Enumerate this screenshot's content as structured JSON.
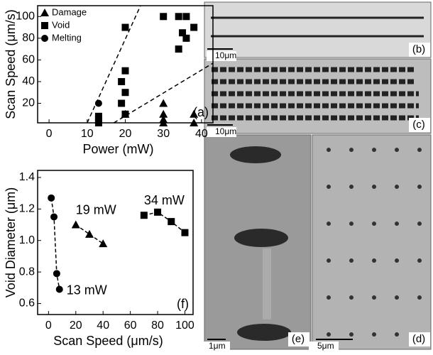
{
  "chart_data": [
    {
      "type": "scatter",
      "x_label": "Power (mW)",
      "y_label": "Scan Speed (μm/s)",
      "panel_label": "(a)",
      "xlim": [
        -3,
        43
      ],
      "ylim": [
        2,
        110
      ],
      "xticks": [
        0,
        10,
        20,
        30,
        40
      ],
      "yticks": [
        20,
        40,
        60,
        80,
        100
      ],
      "legend": "upper left",
      "series": [
        {
          "name": "Damage",
          "marker": "triangle",
          "color": "#000000",
          "x": [
            20,
            30,
            30,
            30,
            30,
            38,
            38
          ],
          "values": [
            10,
            20,
            10,
            5,
            2,
            10,
            2
          ]
        },
        {
          "name": "Void",
          "marker": "square",
          "color": "#000000",
          "x": [
            13,
            13,
            13,
            19,
            20,
            20,
            20,
            19,
            20,
            30,
            34,
            36,
            35,
            36,
            34,
            38
          ],
          "values": [
            8,
            5,
            2,
            40,
            50,
            30,
            90,
            20,
            10,
            100,
            100,
            100,
            85,
            80,
            70,
            90
          ]
        },
        {
          "name": "Melting",
          "marker": "circle",
          "color": "#000000",
          "x": [
            13
          ],
          "values": [
            20
          ]
        }
      ],
      "lines": [
        {
          "x": [
            10,
            24
          ],
          "values": [
            2,
            110
          ]
        },
        {
          "x": [
            17,
            43
          ],
          "values": [
            2,
            57
          ]
        }
      ]
    },
    {
      "type": "line",
      "x_label": "Scan Speed (μm/s)",
      "y_label": "Void Diameter (μm)",
      "panel_label": "(f)",
      "xlim": [
        -8,
        106
      ],
      "ylim": [
        0.53,
        1.445
      ],
      "xticks": [
        0,
        20,
        40,
        60,
        80,
        100
      ],
      "yticks": [
        0.6,
        0.8,
        {
          "value": 1,
          "label": "1.0"
        },
        1.2,
        1.4
      ],
      "series": [
        {
          "name": "13 mW",
          "marker": "circle",
          "color": "#000000",
          "x": [
            2,
            4,
            6,
            8
          ],
          "values": [
            1.27,
            1.15,
            0.79,
            0.69
          ]
        },
        {
          "name": "19 mW",
          "marker": "triangle",
          "color": "#000000",
          "x": [
            20,
            30,
            40
          ],
          "values": [
            1.1,
            1.04,
            0.98
          ]
        },
        {
          "name": "34 mW",
          "marker": "square",
          "color": "#000000",
          "x": [
            70,
            80,
            90,
            100
          ],
          "values": [
            1.16,
            1.18,
            1.12,
            1.05
          ]
        }
      ]
    }
  ],
  "panels": [
    {
      "label": "(b)",
      "scale": "10μm"
    },
    {
      "label": "(c)",
      "scale": "10μm"
    },
    {
      "label": "(e)",
      "scale": "1μm"
    },
    {
      "label": "(d)",
      "scale": "5μm"
    }
  ]
}
